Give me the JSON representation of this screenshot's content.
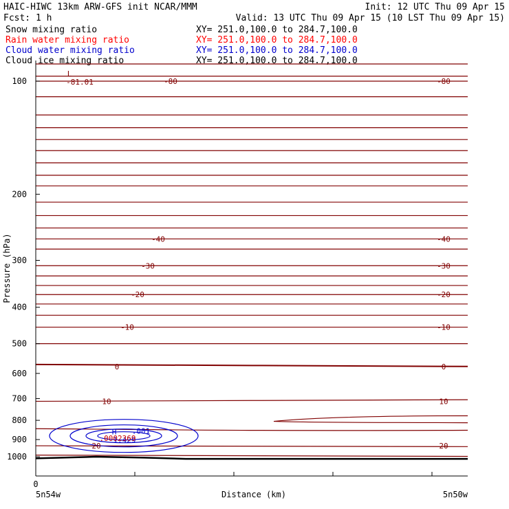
{
  "header": {
    "line1_left": "HAIC-HIWC 13km ARW-GFS init   NCAR/MMM",
    "line1_right": "Init: 12 UTC Thu 09 Apr 15",
    "line2_left": "Fcst:    1 h",
    "line2_right": "Valid: 13 UTC Thu 09 Apr 15 (10 LST Thu 09 Apr 15)"
  },
  "fields": [
    {
      "name": "Snow mixing ratio",
      "xy": "XY= 251.0,100.0 to 284.7,100.0",
      "color": "#000000"
    },
    {
      "name": "Rain water mixing ratio",
      "xy": "XY= 251.0,100.0 to 284.7,100.0",
      "color": "#ff0000"
    },
    {
      "name": "Cloud water mixing ratio",
      "xy": "XY= 251.0,100.0 to 284.7,100.0",
      "color": "#0000cc"
    },
    {
      "name": "Cloud ice mixing ratio",
      "xy": "XY= 251.0,100.0 to 284.7,100.0",
      "color": "#000000"
    }
  ],
  "colors": {
    "temperature_contour": "#800000",
    "cloud_water_contour": "#0000cc",
    "rain_water_label": "#cc0000",
    "terrain": "#000000"
  },
  "chart_data": {
    "type": "line",
    "subtype": "vertical cross-section contour plot",
    "xlabel": "Distance (km)",
    "ylabel": "Pressure (hPa)",
    "x_tick_labels": [
      "0"
    ],
    "x_end_labels": {
      "left": "5n54w",
      "right": "5n50w"
    },
    "y_scale": "log",
    "ylim": [
      1050,
      83
    ],
    "yticks": [
      100,
      200,
      300,
      400,
      500,
      600,
      700,
      800,
      900,
      1000
    ],
    "temperature_contour_labels": [
      {
        "value": "-80",
        "pressure": 100
      },
      {
        "value": "-40",
        "pressure": 263
      },
      {
        "value": "-30",
        "pressure": 310
      },
      {
        "value": "-20",
        "pressure": 370
      },
      {
        "value": "-10",
        "pressure": 452
      },
      {
        "value": "0",
        "pressure": 575
      },
      {
        "value": "10",
        "pressure": 712
      },
      {
        "value": "20",
        "pressure": 935
      }
    ],
    "extremum_labels": [
      {
        "marker": "L",
        "value": "-81.01",
        "pressure": 97,
        "color": "#800000"
      },
      {
        "marker": "H",
        "value": "1.429",
        "pressure": 880,
        "color": "#0000cc"
      }
    ],
    "cloud_water_contour_label": ".001",
    "rain_water_value_label": ".0002369",
    "terrain_pressure": [
      1010,
      1000,
      1006,
      1013,
      1013
    ]
  }
}
